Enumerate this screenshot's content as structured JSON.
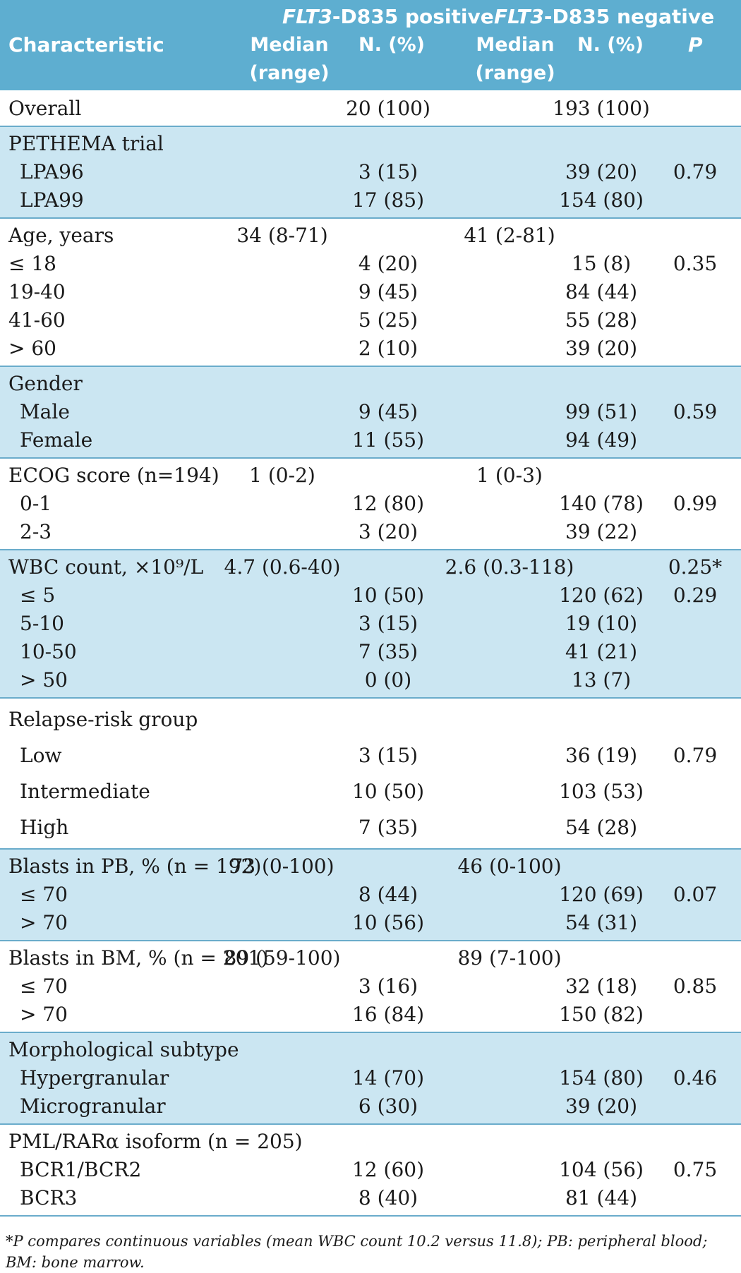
{
  "table": {
    "header": {
      "group_pos_gene": "FLT3",
      "group_pos_rest": "-D835 positive",
      "group_neg_gene": "FLT3",
      "group_neg_rest": "-D835 negative",
      "characteristic": "Characteristic",
      "median_line1": "Median",
      "median_line2": "(range)",
      "n_pct": "N. (%)",
      "p": "P"
    },
    "groups": [
      {
        "shaded": false,
        "rows": [
          {
            "label": "Overall",
            "sub": false,
            "med1": "",
            "n1": "20 (100)",
            "med2": "",
            "n2": "193 (100)",
            "p": ""
          }
        ]
      },
      {
        "shaded": true,
        "rows": [
          {
            "label": "PETHEMA trial",
            "sub": false,
            "med1": "",
            "n1": "",
            "med2": "",
            "n2": "",
            "p": ""
          },
          {
            "label": "LPA96",
            "sub": true,
            "med1": "",
            "n1": "3 (15)",
            "med2": "",
            "n2": "39 (20)",
            "p": "0.79"
          },
          {
            "label": "LPA99",
            "sub": true,
            "med1": "",
            "n1": "17 (85)",
            "med2": "",
            "n2": "154 (80)",
            "p": ""
          }
        ]
      },
      {
        "shaded": false,
        "rows": [
          {
            "label": "Age, years",
            "sub": false,
            "med1": "34 (8-71)",
            "n1": "",
            "med2": "41 (2-81)",
            "n2": "",
            "p": ""
          },
          {
            "label": "≤ 18",
            "sub": false,
            "med1": "",
            "n1": "4 (20)",
            "med2": "",
            "n2": "15 (8)",
            "p": "0.35"
          },
          {
            "label": "19-40",
            "sub": false,
            "med1": "",
            "n1": "9 (45)",
            "med2": "",
            "n2": "84 (44)",
            "p": ""
          },
          {
            "label": "41-60",
            "sub": false,
            "med1": "",
            "n1": "5 (25)",
            "med2": "",
            "n2": "55 (28)",
            "p": ""
          },
          {
            "label": "> 60",
            "sub": false,
            "med1": "",
            "n1": "2 (10)",
            "med2": "",
            "n2": "39 (20)",
            "p": ""
          }
        ]
      },
      {
        "shaded": true,
        "rows": [
          {
            "label": "Gender",
            "sub": false,
            "med1": "",
            "n1": "",
            "med2": "",
            "n2": "",
            "p": ""
          },
          {
            "label": "Male",
            "sub": true,
            "med1": "",
            "n1": "9 (45)",
            "med2": "",
            "n2": "99 (51)",
            "p": "0.59"
          },
          {
            "label": "Female",
            "sub": true,
            "med1": "",
            "n1": "11 (55)",
            "med2": "",
            "n2": "94 (49)",
            "p": ""
          }
        ]
      },
      {
        "shaded": false,
        "rows": [
          {
            "label": "ECOG score (n=194)",
            "sub": false,
            "med1": "1 (0-2)",
            "n1": "",
            "med2": "1 (0-3)",
            "n2": "",
            "p": ""
          },
          {
            "label": "0-1",
            "sub": true,
            "med1": "",
            "n1": "12 (80)",
            "med2": "",
            "n2": "140 (78)",
            "p": "0.99"
          },
          {
            "label": "2-3",
            "sub": true,
            "med1": "",
            "n1": "3 (20)",
            "med2": "",
            "n2": "39 (22)",
            "p": ""
          }
        ]
      },
      {
        "shaded": true,
        "rows": [
          {
            "label": "WBC count, ×10⁹/L",
            "sub": false,
            "med1": "4.7 (0.6-40)",
            "n1": "",
            "med2": "2.6 (0.3-118)",
            "n2": "",
            "p": "0.25*"
          },
          {
            "label": "≤ 5",
            "sub": true,
            "med1": "",
            "n1": "10 (50)",
            "med2": "",
            "n2": "120 (62)",
            "p": "0.29"
          },
          {
            "label": "5-10",
            "sub": true,
            "med1": "",
            "n1": "3 (15)",
            "med2": "",
            "n2": "19 (10)",
            "p": ""
          },
          {
            "label": "10-50",
            "sub": true,
            "med1": "",
            "n1": "7 (35)",
            "med2": "",
            "n2": "41 (21)",
            "p": ""
          },
          {
            "label": "> 50",
            "sub": true,
            "med1": "",
            "n1": "0 (0)",
            "med2": "",
            "n2": "13 (7)",
            "p": ""
          }
        ]
      },
      {
        "shaded": false,
        "spaced": true,
        "rows": [
          {
            "label": "Relapse-risk group",
            "sub": false,
            "med1": "",
            "n1": "",
            "med2": "",
            "n2": "",
            "p": ""
          },
          {
            "label": "Low",
            "sub": true,
            "med1": "",
            "n1": "3 (15)",
            "med2": "",
            "n2": "36 (19)",
            "p": "0.79"
          },
          {
            "label": "Intermediate",
            "sub": true,
            "med1": "",
            "n1": "10 (50)",
            "med2": "",
            "n2": "103 (53)",
            "p": ""
          },
          {
            "label": "High",
            "sub": true,
            "med1": "",
            "n1": "7 (35)",
            "med2": "",
            "n2": "54 (28)",
            "p": ""
          }
        ]
      },
      {
        "shaded": true,
        "rows": [
          {
            "label": "Blasts in PB, % (n = 192)",
            "sub": false,
            "med1": "73 (0-100)",
            "n1": "",
            "med2": "46 (0-100)",
            "n2": "",
            "p": ""
          },
          {
            "label": "≤ 70",
            "sub": true,
            "med1": "",
            "n1": "8 (44)",
            "med2": "",
            "n2": "120 (69)",
            "p": "0.07"
          },
          {
            "label": "> 70",
            "sub": true,
            "med1": "",
            "n1": "10 (56)",
            "med2": "",
            "n2": "54 (31)",
            "p": ""
          }
        ]
      },
      {
        "shaded": false,
        "rows": [
          {
            "label": "Blasts in BM, % (n = 201)",
            "sub": false,
            "med1": "89 (59-100)",
            "n1": "",
            "med2": "89 (7-100)",
            "n2": "",
            "p": ""
          },
          {
            "label": "≤ 70",
            "sub": true,
            "med1": "",
            "n1": "3 (16)",
            "med2": "",
            "n2": "32 (18)",
            "p": "0.85"
          },
          {
            "label": "> 70",
            "sub": true,
            "med1": "",
            "n1": "16 (84)",
            "med2": "",
            "n2": "150 (82)",
            "p": ""
          }
        ]
      },
      {
        "shaded": true,
        "rows": [
          {
            "label": "Morphological subtype",
            "sub": false,
            "med1": "",
            "n1": "",
            "med2": "",
            "n2": "",
            "p": ""
          },
          {
            "label": "Hypergranular",
            "sub": true,
            "med1": "",
            "n1": "14 (70)",
            "med2": "",
            "n2": "154 (80)",
            "p": "0.46"
          },
          {
            "label": "Microgranular",
            "sub": true,
            "med1": "",
            "n1": "6 (30)",
            "med2": "",
            "n2": "39 (20)",
            "p": ""
          }
        ]
      },
      {
        "shaded": false,
        "rows": [
          {
            "label": "PML/RARα isoform (n = 205)",
            "sub": false,
            "med1": "",
            "n1": "",
            "med2": "",
            "n2": "",
            "p": ""
          },
          {
            "label": "BCR1/BCR2",
            "sub": true,
            "med1": "",
            "n1": "12 (60)",
            "med2": "",
            "n2": "104 (56)",
            "p": "0.75"
          },
          {
            "label": "BCR3",
            "sub": true,
            "med1": "",
            "n1": "8 (40)",
            "med2": "",
            "n2": "81 (44)",
            "p": ""
          }
        ]
      }
    ],
    "footnote": "*P compares continuous variables (mean WBC count 10.2 versus 11.8); PB: peripheral blood; BM: bone marrow."
  }
}
